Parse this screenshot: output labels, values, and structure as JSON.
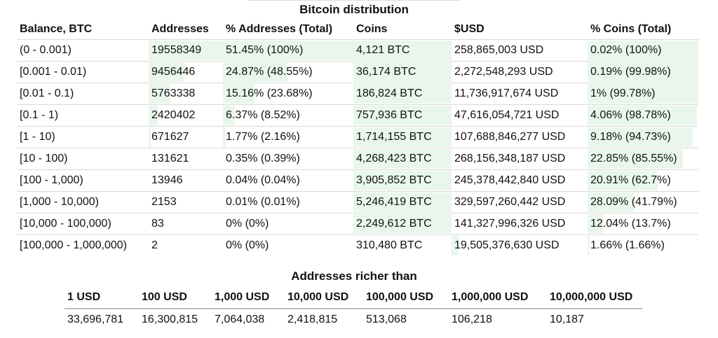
{
  "title": "Bitcoin distribution",
  "headers": [
    "Balance, BTC",
    "Addresses",
    "% Addresses (Total)",
    "Coins",
    "$USD",
    "% Coins (Total)"
  ],
  "bar_color": "#e9f6ec",
  "rows": [
    {
      "balance": "(0 - 0.001)",
      "addresses": "19558349",
      "pct_addresses": "51.45% (100%)",
      "coins": "4,121 BTC",
      "usd": "258,865,003 USD",
      "pct_coins": "0.02% (100%)",
      "addr_fill": 1.0,
      "pct_addr_fill": 1.0,
      "coins_fill": 1.0,
      "usd_fill": 0.0,
      "pct_coins_fill": 1.0
    },
    {
      "balance": "[0.001 - 0.01)",
      "addresses": "9456446",
      "pct_addresses": "24.87% (48.55%)",
      "coins": "36,174 BTC",
      "usd": "2,272,548,293 USD",
      "pct_coins": "0.19% (99.98%)",
      "addr_fill": 0.48,
      "pct_addr_fill": 0.49,
      "coins_fill": 1.0,
      "usd_fill": 0.0,
      "pct_coins_fill": 1.0
    },
    {
      "balance": "[0.01 - 0.1)",
      "addresses": "5763338",
      "pct_addresses": "15.16% (23.68%)",
      "coins": "186,824 BTC",
      "usd": "11,736,917,674 USD",
      "pct_coins": "1% (99.78%)",
      "addr_fill": 0.29,
      "pct_addr_fill": 0.24,
      "coins_fill": 1.0,
      "usd_fill": 0.0,
      "pct_coins_fill": 1.0
    },
    {
      "balance": "[0.1 - 1)",
      "addresses": "2420402",
      "pct_addresses": "6.37% (8.52%)",
      "coins": "757,936 BTC",
      "usd": "47,616,054,721 USD",
      "pct_coins": "4.06% (98.78%)",
      "addr_fill": 0.12,
      "pct_addr_fill": 0.09,
      "coins_fill": 1.0,
      "usd_fill": 0.0,
      "pct_coins_fill": 0.99
    },
    {
      "balance": "[1 - 10)",
      "addresses": "671627",
      "pct_addresses": "1.77% (2.16%)",
      "coins": "1,714,155 BTC",
      "usd": "107,688,846,277 USD",
      "pct_coins": "9.18% (94.73%)",
      "addr_fill": 0.03,
      "pct_addr_fill": 0.02,
      "coins_fill": 1.0,
      "usd_fill": 0.0,
      "pct_coins_fill": 0.95
    },
    {
      "balance": "[10 - 100)",
      "addresses": "131621",
      "pct_addresses": "0.35% (0.39%)",
      "coins": "4,268,423 BTC",
      "usd": "268,156,348,187 USD",
      "pct_coins": "22.85% (85.55%)",
      "addr_fill": 0.0,
      "pct_addr_fill": 0.0,
      "coins_fill": 1.0,
      "usd_fill": 0.0,
      "pct_coins_fill": 0.86
    },
    {
      "balance": "[100 - 1,000)",
      "addresses": "13946",
      "pct_addresses": "0.04% (0.04%)",
      "coins": "3,905,852 BTC",
      "usd": "245,378,442,840 USD",
      "pct_coins": "20.91% (62.7%)",
      "addr_fill": 0.0,
      "pct_addr_fill": 0.0,
      "coins_fill": 1.0,
      "usd_fill": 0.0,
      "pct_coins_fill": 0.63
    },
    {
      "balance": "[1,000 - 10,000)",
      "addresses": "2153",
      "pct_addresses": "0.01% (0.01%)",
      "coins": "5,246,419 BTC",
      "usd": "329,597,260,442 USD",
      "pct_coins": "28.09% (41.79%)",
      "addr_fill": 0.0,
      "pct_addr_fill": 0.0,
      "coins_fill": 1.0,
      "usd_fill": 0.0,
      "pct_coins_fill": 0.42
    },
    {
      "balance": "[10,000 - 100,000)",
      "addresses": "83",
      "pct_addresses": "0% (0%)",
      "coins": "2,249,612 BTC",
      "usd": "141,327,996,326 USD",
      "pct_coins": "12.04% (13.7%)",
      "addr_fill": 0.0,
      "pct_addr_fill": 0.0,
      "coins_fill": 1.0,
      "usd_fill": 0.0,
      "pct_coins_fill": 0.14
    },
    {
      "balance": "[100,000 - 1,000,000)",
      "addresses": "2",
      "pct_addresses": "0% (0%)",
      "coins": "310,480 BTC",
      "usd": "19,505,376,630 USD",
      "pct_coins": "1.66% (1.66%)",
      "addr_fill": 0.0,
      "pct_addr_fill": 0.0,
      "coins_fill": 0.0,
      "usd_fill": 0.05,
      "pct_coins_fill": 0.02
    }
  ],
  "rich": {
    "title": "Addresses richer than",
    "headers": [
      "1 USD",
      "100 USD",
      "1,000 USD",
      "10,000 USD",
      "100,000 USD",
      "1,000,000 USD",
      "10,000,000 USD"
    ],
    "values": [
      "33,696,781",
      "16,300,815",
      "7,064,038",
      "2,418,815",
      "513,068",
      "106,218",
      "10,187"
    ]
  }
}
